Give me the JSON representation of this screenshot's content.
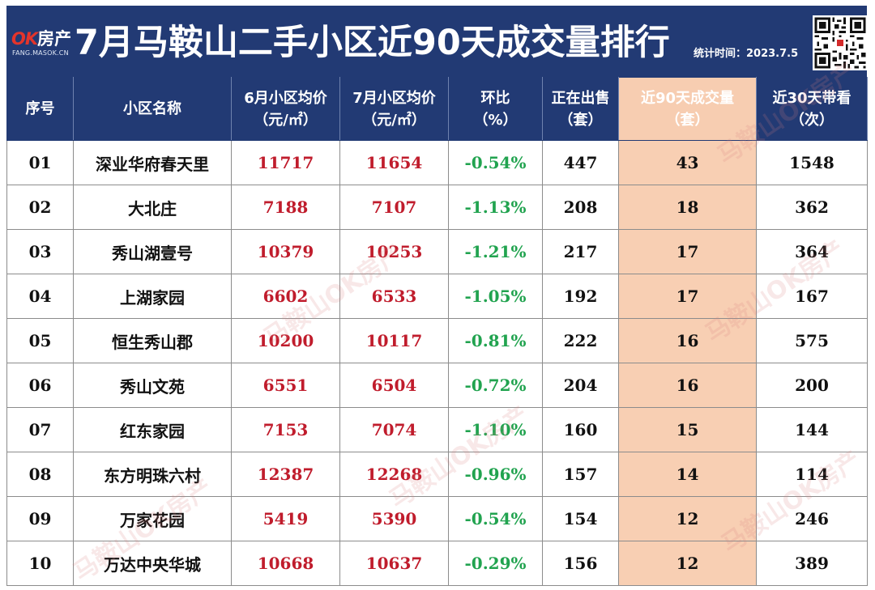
{
  "header": {
    "logo_ok": "OK",
    "logo_house": "房产",
    "logo_url": "FANG.MASOK.CN",
    "title": "7月马鞍山二手小区近90天成交量排行",
    "stat_time": "统计时间：2023.7.5"
  },
  "table": {
    "headers": [
      {
        "line1": "序号",
        "line2": ""
      },
      {
        "line1": "小区名称",
        "line2": ""
      },
      {
        "line1": "6月小区均价",
        "line2": "（元/㎡）"
      },
      {
        "line1": "7月小区均价",
        "line2": "（元/㎡）"
      },
      {
        "line1": "环比",
        "line2": "（%）"
      },
      {
        "line1": "正在出售",
        "line2": "（套）"
      },
      {
        "line1": "近90天成交量",
        "line2": "（套）"
      },
      {
        "line1": "近30天带看",
        "line2": "（次）"
      }
    ],
    "rows": [
      {
        "no": "01",
        "name": "深业华府春天里",
        "june": "11717",
        "july": "11654",
        "mom": "-0.54%",
        "selling": "447",
        "deals90": "43",
        "views30": "1548"
      },
      {
        "no": "02",
        "name": "大北庄",
        "june": "7188",
        "july": "7107",
        "mom": "-1.13%",
        "selling": "208",
        "deals90": "18",
        "views30": "362"
      },
      {
        "no": "03",
        "name": "秀山湖壹号",
        "june": "10379",
        "july": "10253",
        "mom": "-1.21%",
        "selling": "217",
        "deals90": "17",
        "views30": "364"
      },
      {
        "no": "04",
        "name": "上湖家园",
        "june": "6602",
        "july": "6533",
        "mom": "-1.05%",
        "selling": "192",
        "deals90": "17",
        "views30": "167"
      },
      {
        "no": "05",
        "name": "恒生秀山郡",
        "june": "10200",
        "july": "10117",
        "mom": "-0.81%",
        "selling": "222",
        "deals90": "16",
        "views30": "575"
      },
      {
        "no": "06",
        "name": "秀山文苑",
        "june": "6551",
        "july": "6504",
        "mom": "-0.72%",
        "selling": "204",
        "deals90": "16",
        "views30": "200"
      },
      {
        "no": "07",
        "name": "红东家园",
        "june": "7153",
        "july": "7074",
        "mom": "-1.10%",
        "selling": "160",
        "deals90": "15",
        "views30": "144"
      },
      {
        "no": "08",
        "name": "东方明珠六村",
        "june": "12387",
        "july": "12268",
        "mom": "-0.96%",
        "selling": "157",
        "deals90": "14",
        "views30": "114"
      },
      {
        "no": "09",
        "name": "万家花园",
        "june": "5419",
        "july": "5390",
        "mom": "-0.54%",
        "selling": "154",
        "deals90": "12",
        "views30": "246"
      },
      {
        "no": "10",
        "name": "万达中央华城",
        "june": "10668",
        "july": "10637",
        "mom": "-0.29%",
        "selling": "156",
        "deals90": "12",
        "views30": "389"
      }
    ]
  },
  "watermark": "马鞍山OK房产",
  "colors": {
    "header_bg": "#223a74",
    "highlight_column": "#f8cfb3",
    "price_red": "#c01c2c",
    "change_green": "#21a34f"
  }
}
